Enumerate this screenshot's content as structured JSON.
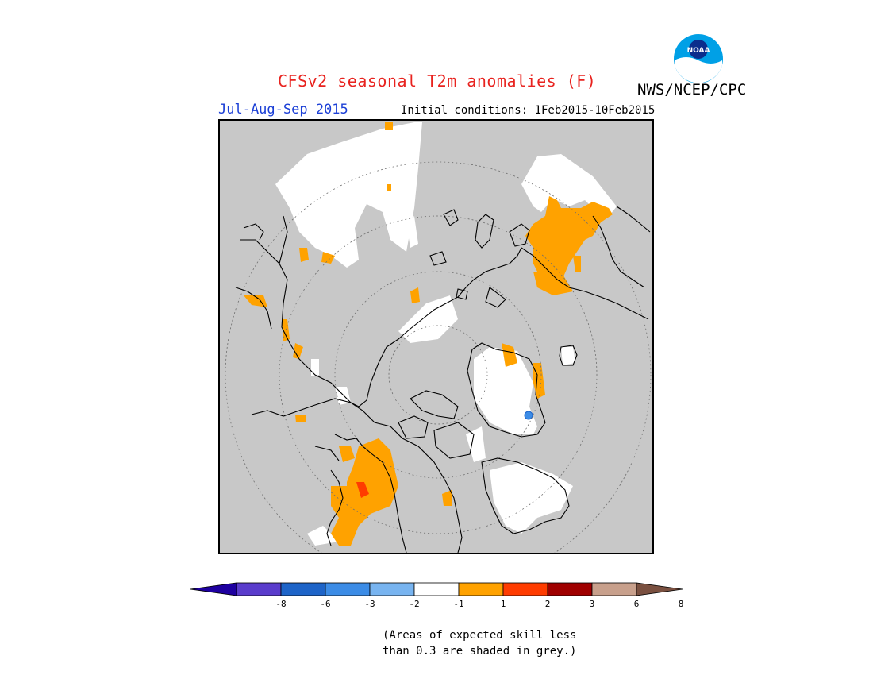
{
  "header": {
    "title": "CFSv2 seasonal T2m anomalies (F)",
    "agency": "NWS/NCEP/CPC",
    "logo_text": "NOAA",
    "season": "Jul-Aug-Sep 2015",
    "initial_conditions": "Initial conditions: 1Feb2015-10Feb2015"
  },
  "map": {
    "projection": "north polar stereographic",
    "background_color": "#c8c8c8",
    "land_outline_color": "#000000",
    "graticule": "dotted latitude circles",
    "regions": [
      {
        "area": "Siberia / East Asia",
        "category": "1 to 2",
        "color": "#ffa200"
      },
      {
        "area": "Northern Europe / Scandinavia",
        "category": "1 to 2",
        "color": "#ffa200"
      },
      {
        "area": "Greenland",
        "category": "1 to 2",
        "color": "#ffa200"
      },
      {
        "area": "Greenland",
        "category": "-3 to -2",
        "color": "#3c8ce6"
      },
      {
        "area": "Western North America",
        "category": "1 to 2",
        "color": "#ffa200"
      },
      {
        "area": "Western North America",
        "category": "2 to 3",
        "color": "#ff3c00"
      },
      {
        "area": "Scandinavia / Eastern Canada / Arctic islands",
        "category": "-1 to 1",
        "color": "#ffffff"
      }
    ]
  },
  "colorbar": {
    "labels": [
      "-8",
      "-6",
      "-3",
      "-2",
      "-1",
      "1",
      "2",
      "3",
      "6",
      "8"
    ],
    "colors": [
      "#1e00a0",
      "#5a3ccc",
      "#1e64c8",
      "#3c8ce6",
      "#78b4f0",
      "#ffffff",
      "#ffa200",
      "#ff3c00",
      "#a00000",
      "#c8a08c",
      "#7a5040"
    ]
  },
  "footnote": {
    "line1": "(Areas of expected skill less",
    "line2": "than 0.3 are shaded in grey.)"
  }
}
